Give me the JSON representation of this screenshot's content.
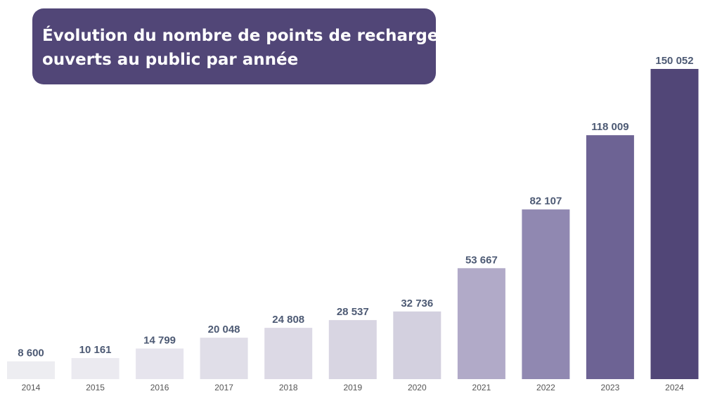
{
  "title": {
    "line1": "Évolution du nombre de points de recharge",
    "line2": "ouverts au public par année"
  },
  "colors": {
    "title_background": "#514677",
    "title_text": "#ffffff",
    "value_label": "#4d5a74",
    "tick_label": "#555555",
    "bars": [
      "#ededf1",
      "#ebeaf0",
      "#e6e4ed",
      "#e0dee8",
      "#dcd9e5",
      "#d8d5e2",
      "#d3d0df",
      "#b1aac8",
      "#9088b1",
      "#6d6394",
      "#514677"
    ]
  },
  "chart_data": {
    "type": "bar",
    "title": "Évolution du nombre de points de recharge ouverts au public par année",
    "xlabel": "",
    "ylabel": "",
    "categories": [
      "2014",
      "2015",
      "2016",
      "2017",
      "2018",
      "2019",
      "2020",
      "2021",
      "2022",
      "2023",
      "2024"
    ],
    "values": [
      8600,
      10161,
      14799,
      20048,
      24808,
      28537,
      32736,
      53667,
      82107,
      118009,
      150052
    ],
    "value_labels": [
      "8 600",
      "10 161",
      "14 799",
      "20 048",
      "24 808",
      "28 537",
      "32 736",
      "53 667",
      "82 107",
      "118 009",
      "150 052"
    ],
    "ylim": [
      0,
      150052
    ],
    "grid": false,
    "legend": "none",
    "y_axis_visible": false
  }
}
